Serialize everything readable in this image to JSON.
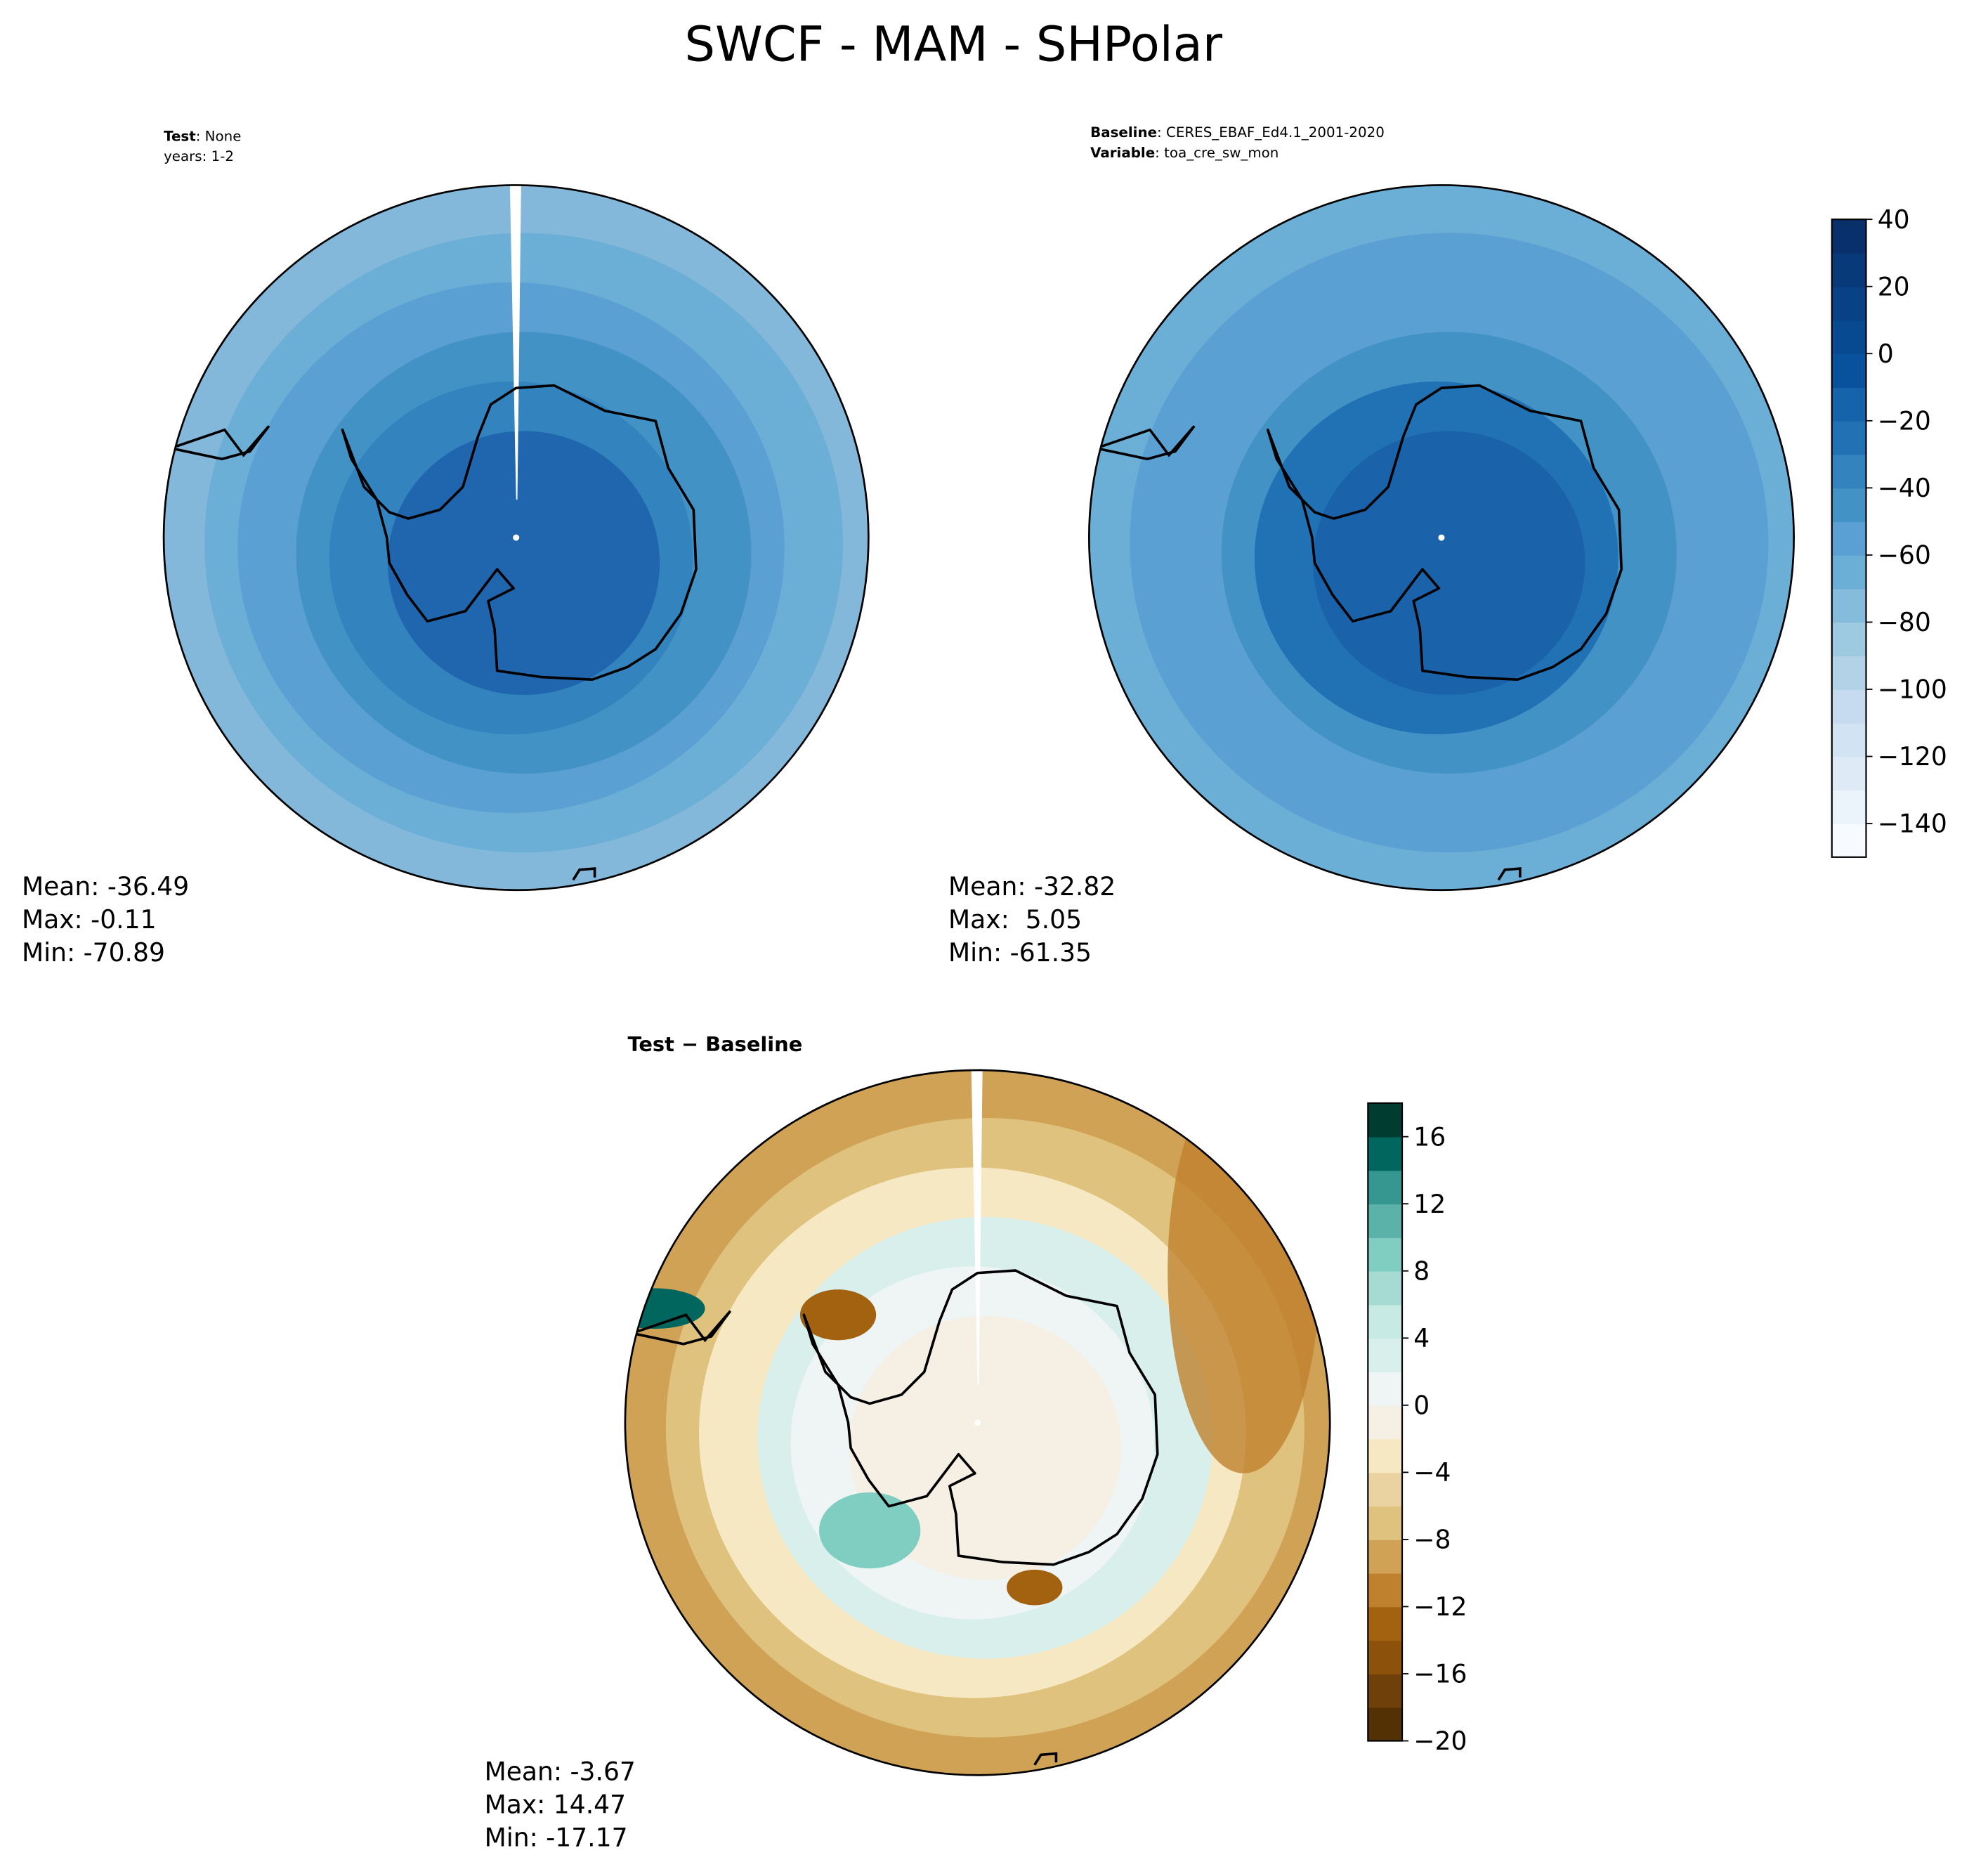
{
  "title": "SWCF - MAM - SHPolar",
  "chart_data": [
    {
      "type": "map",
      "subtitle_lines": [
        {
          "label": "Test",
          "text": ": None"
        },
        {
          "text": "years: 1-2"
        }
      ],
      "stats": [
        "Mean: -36.49",
        "Max: -0.11",
        "Min: -70.89"
      ]
    },
    {
      "type": "map",
      "subtitle_lines": [
        {
          "label": "Baseline",
          "text": ": CERES_EBAF_Ed4.1_2001-2020"
        },
        {
          "label": "Variable",
          "text": ": toa_cre_sw_mon"
        }
      ],
      "stats": [
        "Mean: -32.82",
        "Max:  5.05",
        "Min: -61.35"
      ],
      "colorbar": {
        "ylim": [
          -150,
          40
        ],
        "yticks": [
          {
            "value": -140,
            "label": "−140"
          },
          {
            "value": -120,
            "label": "−120"
          },
          {
            "value": -100,
            "label": "−100"
          },
          {
            "value": -80,
            "label": "−80"
          },
          {
            "value": -60,
            "label": "−60"
          },
          {
            "value": -40,
            "label": "−40"
          },
          {
            "value": -20,
            "label": "−20"
          },
          0,
          20,
          40
        ],
        "colors": [
          "#f7fbff",
          "#ebf3fb",
          "#deebf7",
          "#d2e3f3",
          "#c6dbef",
          "#b2d2e8",
          "#9ecae1",
          "#85bcdc",
          "#6baed6",
          "#5aa0d2",
          "#4292c6",
          "#3383be",
          "#2171b5",
          "#1563aa",
          "#08519c",
          "#084a91",
          "#084185",
          "#083a7a",
          "#08306b"
        ]
      }
    },
    {
      "type": "map",
      "title": "Test − Baseline",
      "stats": [
        "Mean: -3.67",
        "Max: 14.47",
        "Min: -17.17"
      ],
      "colorbar": {
        "ylim": [
          -20,
          18
        ],
        "yticks": [
          {
            "value": -20,
            "label": "−20"
          },
          {
            "value": -16,
            "label": "−16"
          },
          {
            "value": -12,
            "label": "−12"
          },
          {
            "value": -8,
            "label": "−8"
          },
          {
            "value": -4,
            "label": "−4"
          },
          0,
          4,
          8,
          12,
          16
        ],
        "colors": [
          "#543005",
          "#6f400a",
          "#8c510a",
          "#a3620f",
          "#bf812d",
          "#cfa255",
          "#dfc27d",
          "#ead3a1",
          "#f6e8c3",
          "#f5f0e3",
          "#eef5f4",
          "#d8efec",
          "#c7eae5",
          "#a6dbd3",
          "#80cdc1",
          "#5ab2a8",
          "#35978f",
          "#01665e",
          "#003c30"
        ]
      }
    }
  ]
}
